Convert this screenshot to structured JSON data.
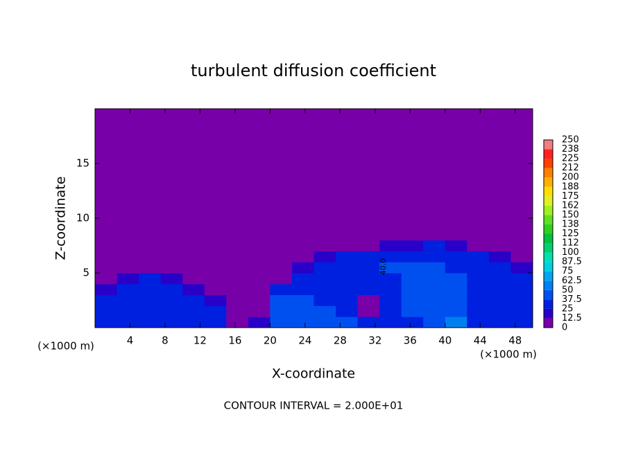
{
  "chart_data": {
    "type": "contour",
    "title": "turbulent diffusion coefficient",
    "xlabel": "X-coordinate",
    "ylabel": "Z-coordinate",
    "x_unit": "(×1000 m)",
    "annotation": "CONTOUR INTERVAL = 2.000E+01",
    "contour_labels": [
      "40.0"
    ],
    "xlim": [
      0,
      50
    ],
    "ylim": [
      0,
      20
    ],
    "xticks": [
      4,
      8,
      12,
      16,
      20,
      24,
      28,
      32,
      36,
      40,
      44,
      48
    ],
    "yticks": [
      5,
      10,
      15
    ],
    "x_edges": [
      0,
      2.5,
      5,
      7.5,
      10,
      12.5,
      15,
      17.5,
      20,
      22.5,
      25,
      27.5,
      30,
      32.5,
      35,
      37.5,
      40,
      42.5,
      45,
      47.5,
      50
    ],
    "y_edges": [
      0,
      1,
      2,
      3,
      4,
      5,
      6,
      7,
      8,
      20
    ],
    "z": [
      [
        30,
        30,
        28,
        32,
        30,
        25,
        8,
        20,
        45,
        48,
        45,
        40,
        35,
        30,
        35,
        40,
        50,
        35,
        30,
        32
      ],
      [
        25,
        28,
        30,
        35,
        32,
        28,
        5,
        10,
        45,
        48,
        45,
        35,
        10,
        30,
        45,
        40,
        45,
        35,
        30,
        30
      ],
      [
        25,
        30,
        32,
        35,
        30,
        20,
        3,
        5,
        40,
        45,
        35,
        35,
        10,
        35,
        45,
        40,
        40,
        35,
        32,
        30
      ],
      [
        15,
        25,
        30,
        30,
        15,
        5,
        3,
        5,
        30,
        35,
        35,
        35,
        30,
        35,
        45,
        40,
        40,
        35,
        30,
        28
      ],
      [
        8,
        15,
        28,
        20,
        5,
        3,
        2,
        3,
        5,
        25,
        30,
        35,
        30,
        35,
        45,
        38,
        40,
        35,
        30,
        25
      ],
      [
        5,
        8,
        10,
        5,
        3,
        2,
        2,
        3,
        3,
        15,
        30,
        30,
        30,
        40,
        40,
        38,
        35,
        30,
        28,
        20
      ],
      [
        2,
        3,
        3,
        2,
        2,
        2,
        2,
        2,
        2,
        5,
        20,
        25,
        30,
        30,
        35,
        35,
        30,
        25,
        20,
        10
      ],
      [
        0,
        0,
        0,
        0,
        0,
        0,
        0,
        0,
        0,
        0,
        3,
        5,
        10,
        15,
        20,
        25,
        15,
        8,
        3,
        2
      ],
      [
        0,
        0,
        0,
        0,
        0,
        0,
        0,
        0,
        0,
        0,
        0,
        0,
        0,
        0,
        0,
        0,
        0,
        0,
        0,
        0
      ]
    ],
    "colorbar": {
      "levels": [
        0,
        12.5,
        25,
        37.5,
        50,
        62.5,
        75,
        87.5,
        100,
        {
          "value": 112.5,
          "label": "112"
        },
        125,
        {
          "value": 137.5,
          "label": "138"
        },
        150,
        {
          "value": 162.5,
          "label": "162"
        },
        175,
        {
          "value": 187.5,
          "label": "188"
        },
        200,
        {
          "value": 212.5,
          "label": "212"
        },
        225,
        {
          "value": 237.5,
          "label": "238"
        },
        250
      ],
      "colors": [
        "#7800a8",
        "#2800c8",
        "#0020e0",
        "#0050f0",
        "#0080f0",
        "#00a8f0",
        "#00d0e0",
        "#00e0b0",
        "#00d070",
        "#00c040",
        "#30d020",
        "#60e020",
        "#a0f020",
        "#e0f020",
        "#ffe000",
        "#ffb000",
        "#ff8000",
        "#ff4000",
        "#ff2020",
        "#f08080"
      ]
    }
  }
}
